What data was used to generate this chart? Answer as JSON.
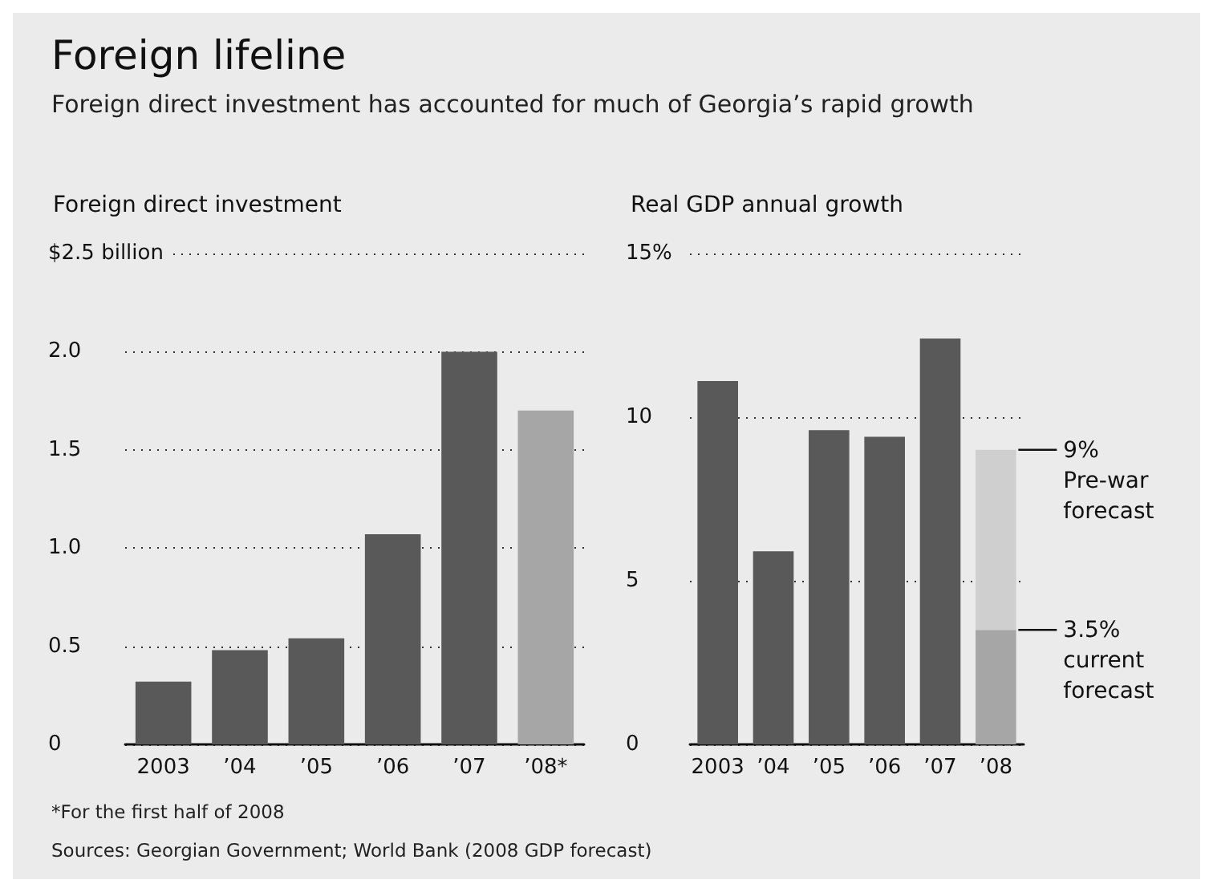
{
  "chart_data": [
    {
      "type": "bar",
      "title": "Foreign lifeline",
      "subtitle": "Foreign direct investment has accounted for much of Georgia’s rapid growth",
      "ylabel": "Foreign direct investment",
      "categories": [
        "2003",
        "’04",
        "’05",
        "’06",
        "’07",
        "’08*"
      ],
      "values": [
        0.32,
        0.48,
        0.54,
        1.07,
        2.0,
        1.7
      ],
      "colors": [
        "#595959",
        "#595959",
        "#595959",
        "#595959",
        "#595959",
        "#a6a6a6"
      ],
      "ylim": [
        0,
        2.5
      ],
      "yticks": [
        0,
        0.5,
        {
          "value": 1,
          "label": "1.0"
        },
        1.5,
        {
          "value": 2,
          "label": "2.0"
        },
        {
          "value": 2.5,
          "label": "$2.5 billion"
        }
      ],
      "grid": "y",
      "annotations": [
        "*For the first half of 2008",
        "Sources: Georgian Government; World Bank (2008 GDP forecast)"
      ]
    },
    {
      "type": "bar",
      "ylabel": "Real GDP annual growth",
      "stacked": true,
      "categories": [
        "2003",
        "’04",
        "’05",
        "’06",
        "’07",
        "’08"
      ],
      "series": [
        {
          "color": "#595959",
          "values": [
            11.1,
            5.9,
            9.6,
            9.4,
            12.4,
            null
          ]
        },
        {
          "color": "#a6a6a6",
          "values": [
            null,
            null,
            null,
            null,
            null,
            3.5
          ]
        },
        {
          "color": "#cfcfcf",
          "values": [
            null,
            null,
            null,
            null,
            null,
            5.5
          ]
        }
      ],
      "ylim": [
        0,
        15
      ],
      "yticks": [
        0,
        5,
        10,
        {
          "value": 15,
          "label": "15%"
        }
      ],
      "grid": "y",
      "annotations": [
        {
          "text": "9% Pre-war forecast",
          "x": "’08",
          "y": 9
        },
        {
          "text": "3.5% current forecast",
          "x": "’08",
          "y": 3.5
        }
      ]
    }
  ]
}
